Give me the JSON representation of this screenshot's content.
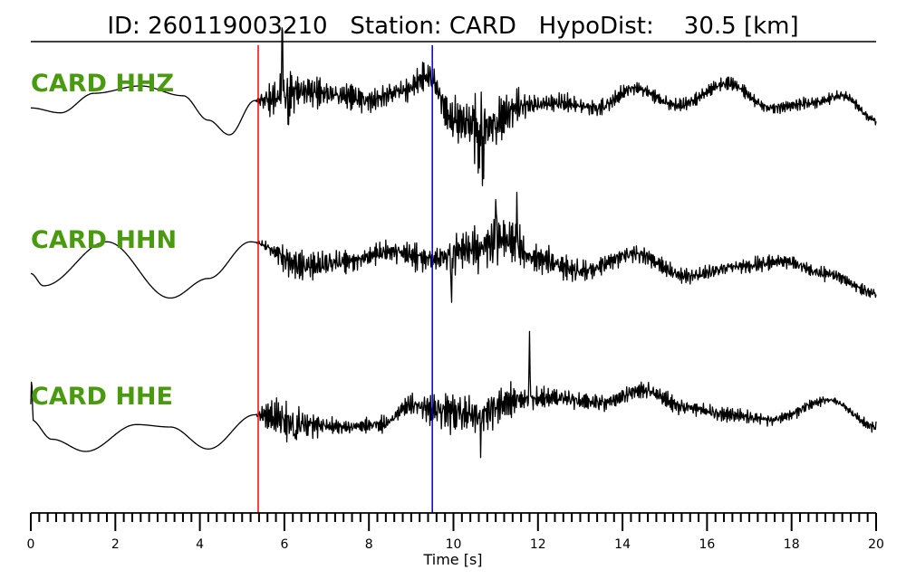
{
  "header": {
    "title": "ID: 260119003210   Station: CARD   HypoDist:    30.5 [km]"
  },
  "colors": {
    "label": "#4a9a10",
    "p_pick": "#ff0000",
    "s_pick": "#0000bb",
    "trace": "#000000",
    "axis": "#000000"
  },
  "chart_data": {
    "type": "line",
    "title": "ID: 260119003210   Station: CARD   HypoDist:    30.5 [km]",
    "xlabel": "Time [s]",
    "ylabel": "",
    "xlim": [
      0,
      20
    ],
    "xticks": [
      0,
      2,
      4,
      6,
      8,
      10,
      12,
      14,
      16,
      18,
      20
    ],
    "minor_tick_step": 0.2,
    "grid": false,
    "picks": [
      {
        "phase": "P",
        "time": 5.38,
        "color": "#ff0000"
      },
      {
        "phase": "S",
        "time": 9.5,
        "color": "#0000bb"
      }
    ],
    "series": [
      {
        "name": "CARD HHZ",
        "low": [
          [
            0,
            0.05
          ],
          [
            0.7,
            -0.05
          ],
          [
            1.5,
            0.35
          ],
          [
            2.6,
            0.5
          ],
          [
            3.6,
            0.3
          ],
          [
            4.2,
            -0.2
          ],
          [
            4.7,
            -0.5
          ],
          [
            5.3,
            0.2
          ],
          [
            6.5,
            0.4
          ],
          [
            7.4,
            0.3
          ],
          [
            8.0,
            0.2
          ],
          [
            8.8,
            0.4
          ],
          [
            9.4,
            0.7
          ],
          [
            10.0,
            -0.2
          ],
          [
            10.8,
            -0.35
          ],
          [
            11.6,
            0.1
          ],
          [
            12.5,
            0.15
          ],
          [
            13.4,
            0.05
          ],
          [
            14.3,
            0.45
          ],
          [
            15.3,
            0.1
          ],
          [
            16.5,
            0.55
          ],
          [
            17.5,
            0.05
          ],
          [
            18.5,
            0.15
          ],
          [
            19.2,
            0.3
          ],
          [
            20,
            -0.2
          ]
        ],
        "noise": [
          [
            0,
            0
          ],
          [
            5.3,
            0
          ],
          [
            5.8,
            0.5
          ],
          [
            6.6,
            0.32
          ],
          [
            8.0,
            0.22
          ],
          [
            9.6,
            0.28
          ],
          [
            10.6,
            0.75
          ],
          [
            11.3,
            0.4
          ],
          [
            12.0,
            0.2
          ],
          [
            14.0,
            0.15
          ],
          [
            17.0,
            0.12
          ],
          [
            20,
            0.1
          ]
        ],
        "spikes": [
          [
            5.95,
            1.45
          ],
          [
            6.1,
            -0.6
          ],
          [
            10.6,
            -0.95
          ],
          [
            10.7,
            -0.9
          ]
        ]
      },
      {
        "name": "CARD HHN",
        "low": [
          [
            0,
            -0.1
          ],
          [
            0.3,
            -0.35
          ],
          [
            1.8,
            0.55
          ],
          [
            3.3,
            -0.6
          ],
          [
            4.2,
            -0.2
          ],
          [
            5.2,
            0.55
          ],
          [
            6.5,
            0.05
          ],
          [
            7.5,
            0.15
          ],
          [
            8.5,
            0.35
          ],
          [
            9.5,
            0.2
          ],
          [
            10.5,
            0.4
          ],
          [
            11.2,
            0.6
          ],
          [
            12.0,
            0.2
          ],
          [
            13.0,
            -0.05
          ],
          [
            14.3,
            0.3
          ],
          [
            15.5,
            -0.15
          ],
          [
            16.8,
            0.05
          ],
          [
            17.8,
            0.15
          ],
          [
            18.8,
            -0.1
          ],
          [
            20,
            -0.5
          ]
        ],
        "noise": [
          [
            0,
            0
          ],
          [
            5.3,
            0
          ],
          [
            6.0,
            0.3
          ],
          [
            7.0,
            0.26
          ],
          [
            8.0,
            0.2
          ],
          [
            9.5,
            0.28
          ],
          [
            10.6,
            0.55
          ],
          [
            11.3,
            0.45
          ],
          [
            12.4,
            0.25
          ],
          [
            15.0,
            0.15
          ],
          [
            17.0,
            0.16
          ],
          [
            20,
            0.12
          ]
        ],
        "spikes": [
          [
            9.95,
            -0.85
          ],
          [
            11.0,
            0.95
          ],
          [
            11.5,
            0.8
          ]
        ]
      },
      {
        "name": "CARD HHE",
        "low": [
          [
            0,
            0.15
          ],
          [
            0.5,
            -0.25
          ],
          [
            1.3,
            -0.5
          ],
          [
            2.5,
            0.05
          ],
          [
            3.3,
            0.0
          ],
          [
            4.2,
            -0.45
          ],
          [
            5.3,
            0.25
          ],
          [
            6.5,
            0.05
          ],
          [
            7.5,
            0.0
          ],
          [
            8.3,
            0.05
          ],
          [
            9.0,
            0.45
          ],
          [
            9.6,
            0.35
          ],
          [
            10.5,
            0.25
          ],
          [
            11.5,
            0.55
          ],
          [
            12.3,
            0.6
          ],
          [
            13.5,
            0.5
          ],
          [
            14.5,
            0.75
          ],
          [
            15.5,
            0.4
          ],
          [
            16.5,
            0.25
          ],
          [
            17.5,
            0.15
          ],
          [
            18.9,
            0.55
          ],
          [
            20,
            0.0
          ]
        ],
        "noise": [
          [
            0,
            0
          ],
          [
            5.3,
            0
          ],
          [
            5.7,
            0.42
          ],
          [
            6.3,
            0.32
          ],
          [
            7.5,
            0.12
          ],
          [
            9.0,
            0.2
          ],
          [
            10.0,
            0.5
          ],
          [
            11.0,
            0.38
          ],
          [
            12.0,
            0.22
          ],
          [
            15.0,
            0.16
          ],
          [
            20,
            0.1
          ]
        ],
        "spikes": [
          [
            0.02,
            0.95
          ],
          [
            6.25,
            -0.55
          ],
          [
            10.65,
            -0.75
          ],
          [
            11.8,
            1.15
          ]
        ]
      }
    ]
  }
}
